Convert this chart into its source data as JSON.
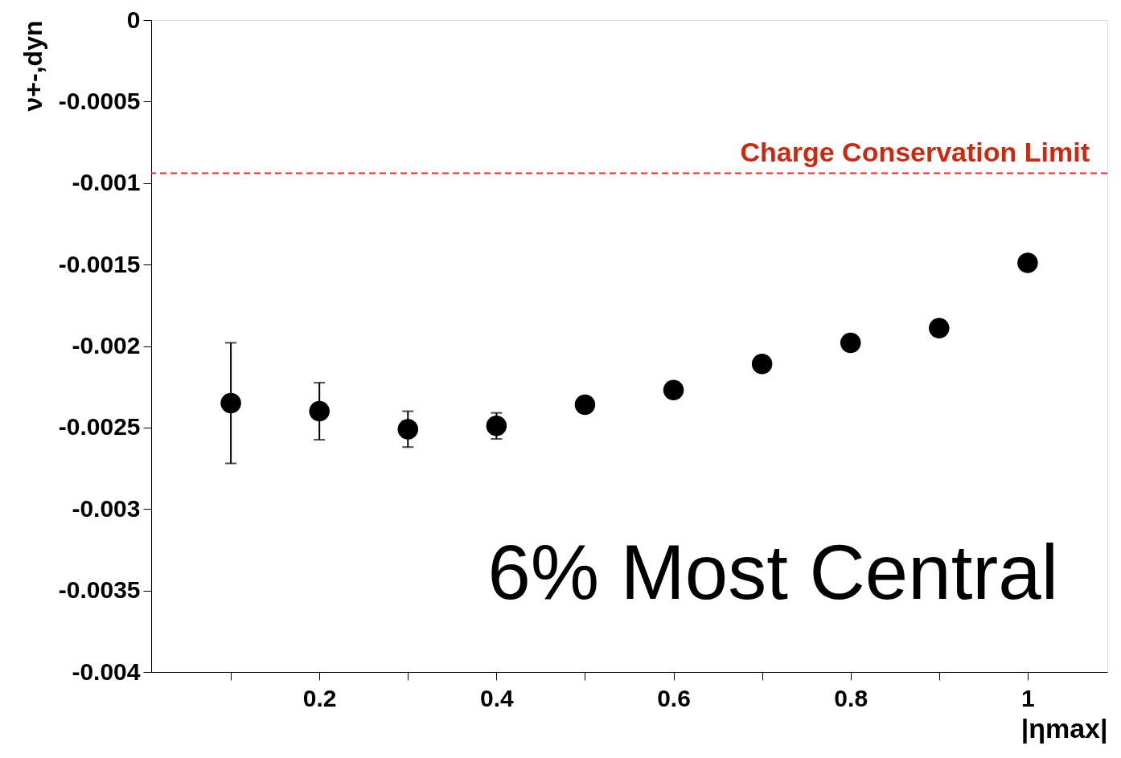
{
  "chart_data": {
    "type": "scatter",
    "xlabel": "|ηmax|",
    "ylabel": "ν+-,dyn",
    "x": [
      0.1,
      0.2,
      0.3,
      0.4,
      0.5,
      0.6,
      0.7,
      0.8,
      0.9,
      1.0
    ],
    "series": [
      {
        "color": "#000000",
        "values": [
          -0.00235,
          -0.0024,
          -0.00251,
          -0.00249,
          -0.00236,
          -0.00227,
          -0.00211,
          -0.00198,
          -0.00189,
          -0.00149
        ],
        "errors": [
          0.00037,
          0.000175,
          0.00011,
          8e-05,
          null,
          null,
          null,
          null,
          null,
          null
        ]
      }
    ],
    "marker": "circle",
    "xlim": [
      0.01,
      1.09
    ],
    "ylim": [
      -0.004,
      0
    ],
    "xticks": [
      {
        "value": 0.1,
        "label": null
      },
      0.2,
      {
        "value": 0.3,
        "label": null
      },
      0.4,
      {
        "value": 0.5,
        "label": null
      },
      0.6,
      {
        "value": 0.7,
        "label": null
      },
      0.8,
      {
        "value": 0.9,
        "label": null
      },
      1
    ],
    "yticks": [
      -0.004,
      -0.0035,
      -0.003,
      -0.0025,
      -0.002,
      -0.0015,
      -0.001,
      -0.0005,
      0
    ],
    "ref_lines": [
      {
        "axis": "y",
        "value": -0.00094,
        "label": "Charge Conservation Limit",
        "color": "#e8292a",
        "line_style": "dashed"
      }
    ],
    "annotations": [
      "6% Most Central"
    ]
  }
}
